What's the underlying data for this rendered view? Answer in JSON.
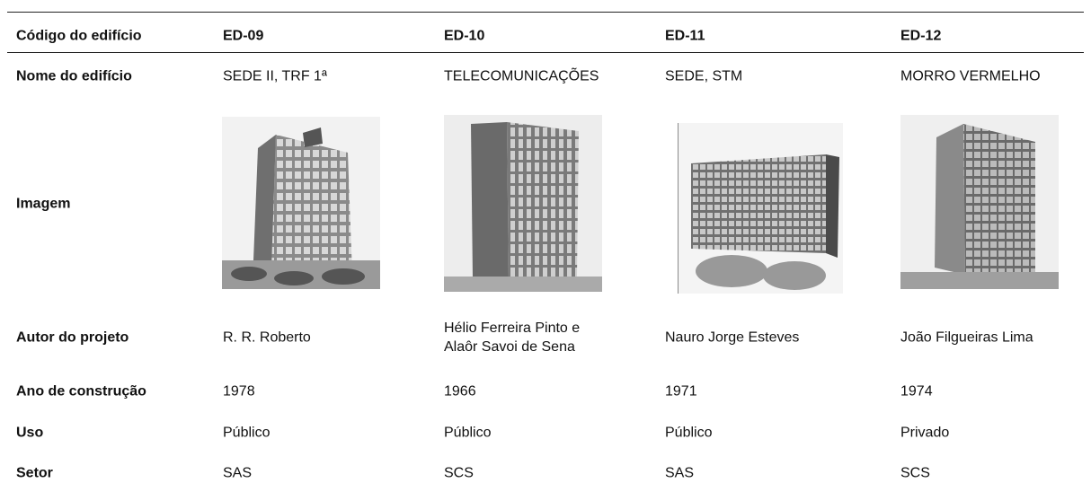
{
  "table": {
    "columns": [
      "Código do edifício",
      "ED-09",
      "ED-10",
      "ED-11",
      "ED-12"
    ],
    "rows": [
      [
        "Nome do edifício",
        "SEDE II, TRF 1ª",
        "TELECOMUNICAÇÕES",
        "SEDE, STM",
        "MORRO VERMELHO"
      ],
      [
        "Imagem"
      ],
      [
        "Autor do projeto",
        "R. R. Roberto",
        "Hélio Ferreira Pinto e Alaôr Savoi de Sena",
        "Nauro Jorge Esteves",
        "João Filgueiras Lima"
      ],
      [
        "Ano de construção",
        "1978",
        "1966",
        "1971",
        "1974"
      ],
      [
        "Uso",
        "Público",
        "Público",
        "Público",
        "Privado"
      ],
      [
        "Setor",
        "SAS",
        "SCS",
        "SAS",
        "SCS"
      ]
    ]
  }
}
